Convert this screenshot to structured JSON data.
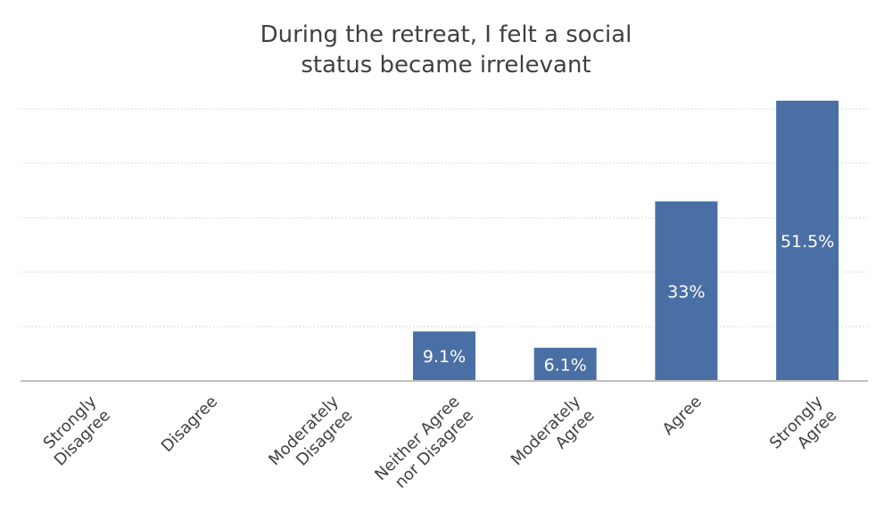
{
  "chart_data": {
    "type": "bar",
    "title_lines": [
      "During the retreat, I felt a social",
      "status became irrelevant"
    ],
    "categories": [
      [
        "Strongly",
        "Disagree"
      ],
      [
        "Disagree"
      ],
      [
        "Moderately",
        "Disagree"
      ],
      [
        "Neither Agree",
        "nor Disagree"
      ],
      [
        "Moderately",
        "Agree"
      ],
      [
        "Agree"
      ],
      [
        "Strongly",
        "Agree"
      ]
    ],
    "values": [
      0,
      0,
      0,
      9.1,
      6.1,
      33,
      51.5
    ],
    "data_labels": [
      "",
      "",
      "",
      "9.1%",
      "6.1%",
      "33%",
      "51.5%"
    ],
    "ylim": [
      0,
      50
    ],
    "ytick_step": 10,
    "grid": true,
    "legend": "none",
    "bar_color": "#4a6fa5"
  }
}
